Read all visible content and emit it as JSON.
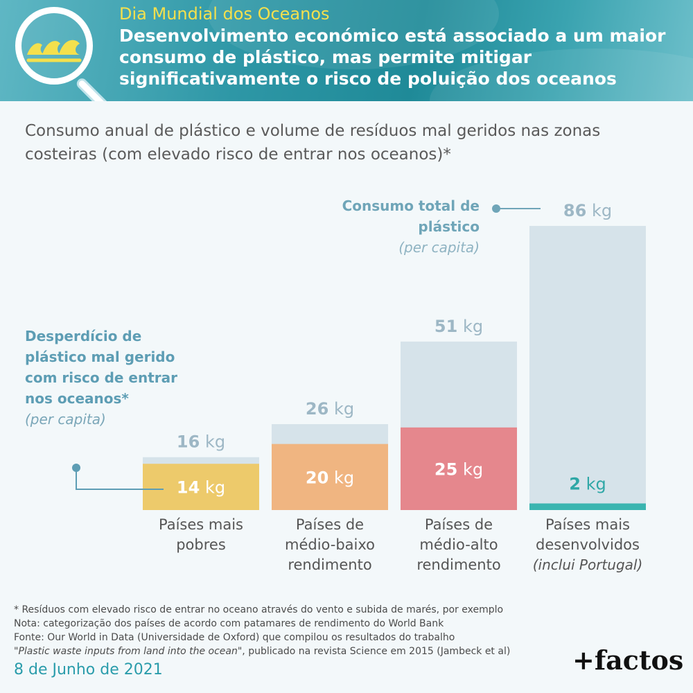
{
  "header": {
    "kicker": "Dia Mundial dos Oceanos",
    "title": "Desenvolvimento económico está associado a um maior consumo de plástico, mas permite mitigar significativamente o risco de poluição dos oceanos",
    "icon": "magnifier-waves-icon"
  },
  "subtitle": "Consumo anual de plástico e volume de resíduos mal geridos nas zonas costeiras (com elevado risco de entrar nos oceanos)*",
  "annotations": {
    "total_label": "Consumo total de plástico",
    "total_sub": "(per capita)",
    "waste_label": "Desperdício de plástico mal gerido com risco de entrar nos oceanos*",
    "waste_sub": "(per capita)"
  },
  "chart_data": {
    "type": "bar",
    "unit": "kg",
    "categories": [
      {
        "lines": [
          "Países mais",
          "pobres"
        ],
        "note": ""
      },
      {
        "lines": [
          "Países de",
          "médio-baixo",
          "rendimento"
        ],
        "note": ""
      },
      {
        "lines": [
          "Países de",
          "médio-alto",
          "rendimento"
        ],
        "note": ""
      },
      {
        "lines": [
          "Países mais",
          "desenvolvidos"
        ],
        "note": "(inclui Portugal)"
      }
    ],
    "series": [
      {
        "name": "Consumo total de plástico (per capita)",
        "values": [
          16,
          26,
          51,
          86
        ],
        "color": "#d6e3ea"
      },
      {
        "name": "Desperdício de plástico mal gerido com risco de entrar nos oceanos (per capita)",
        "values": [
          14,
          20,
          25,
          2
        ],
        "colors": [
          "#edca6b",
          "#f0b581",
          "#e5878d",
          "#3ab5b0"
        ]
      }
    ],
    "ylim": [
      0,
      86
    ]
  },
  "footer": {
    "line1": "* Resíduos com elevado risco de entrar no oceano através do vento e subida de marés, por exemplo",
    "line2": "Nota: categorização dos países de acordo com patamares de rendimento do World Bank",
    "line3": "Fonte: Our World in Data (Universidade de Oxford) que compilou os resultados do trabalho",
    "line4_quote_open": "\"",
    "line4_title": "Plastic waste inputs from land into the ocean",
    "line4_rest": "\", publicado na revista Science em 2015 (Jambeck et al)",
    "date": "8 de Junho de 2021",
    "brand": "+factos"
  }
}
